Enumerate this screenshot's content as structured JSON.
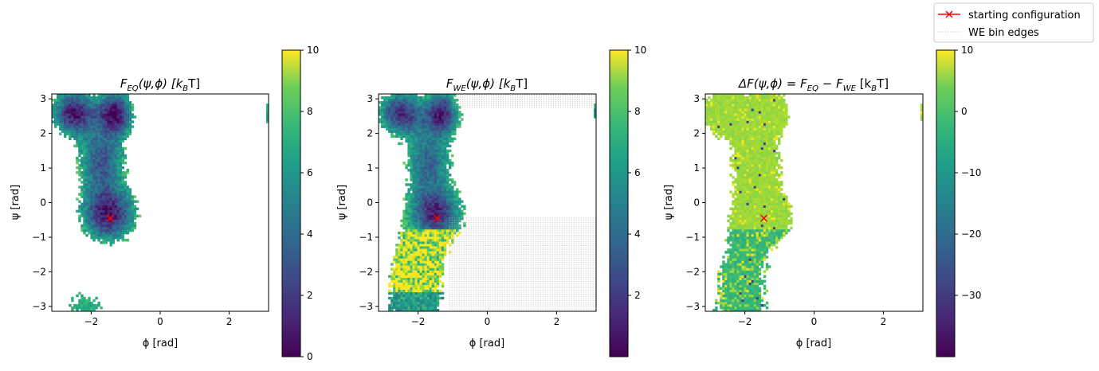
{
  "figure": {
    "legend": {
      "placement": "upper-right",
      "entries": [
        {
          "label": "starting configuration",
          "color": "#ff0000",
          "style": "line-x-marker"
        },
        {
          "label": "WE bin edges",
          "color": "#b0b0b0",
          "style": "dotted"
        }
      ]
    }
  },
  "chart_data": [
    {
      "type": "heatmap",
      "panel": "FEQ",
      "title_main": "F",
      "title_sub": "EQ",
      "title_tail": "(ψ,ϕ) [k",
      "title_sub2": "B",
      "title_end": "T]",
      "xlabel": "ϕ [rad]",
      "ylabel": "ψ [rad]",
      "xlim": [
        -3.14159,
        3.14159
      ],
      "ylim": [
        -3.14159,
        3.14159
      ],
      "xticks": [
        -2,
        0,
        2
      ],
      "yticks": [
        -3,
        -2,
        -1,
        0,
        1,
        2,
        3
      ],
      "colorbar": {
        "ticks": [
          0,
          2,
          4,
          6,
          8,
          10
        ],
        "range": [
          0,
          10
        ],
        "colormap": "viridis"
      },
      "starting_configuration": {
        "phi": -1.45,
        "psi": -0.45
      },
      "show_bin_edges": false,
      "populated_regions": [
        {
          "phi": -2.5,
          "psi": 2.6,
          "level": "low"
        },
        {
          "phi": -1.3,
          "psi": 2.6,
          "level": "low"
        },
        {
          "phi": -1.4,
          "psi": -0.4,
          "level": "low"
        },
        {
          "phi": -2.2,
          "psi": -3.0,
          "level": "high"
        }
      ]
    },
    {
      "type": "heatmap",
      "panel": "FWE",
      "title_main": "F",
      "title_sub": "WE",
      "title_tail": "(ψ,ϕ) [k",
      "title_sub2": "B",
      "title_end": "T]",
      "xlabel": "ϕ [rad]",
      "ylabel": "ψ [rad]",
      "xlim": [
        -3.14159,
        3.14159
      ],
      "ylim": [
        -3.14159,
        3.14159
      ],
      "xticks": [
        -2,
        0,
        2
      ],
      "yticks": [
        -3,
        -2,
        -1,
        0,
        1,
        2,
        3
      ],
      "colorbar": {
        "ticks": [
          2,
          4,
          6,
          8,
          10
        ],
        "range": [
          0,
          10
        ],
        "colormap": "viridis"
      },
      "starting_configuration": {
        "phi": -1.45,
        "psi": -0.45
      },
      "show_bin_edges": true,
      "populated_regions": [
        {
          "phi": -2.5,
          "psi": 2.6,
          "level": "low"
        },
        {
          "phi": -1.4,
          "psi": -0.4,
          "level": "low"
        },
        {
          "phi": -2.0,
          "psi": -2.0,
          "level": "high"
        }
      ]
    },
    {
      "type": "heatmap",
      "panel": "dF",
      "title_main": "ΔF(ψ,ϕ) = F",
      "title_sub": "EQ",
      "title_tail": " − F",
      "title_sub2": "WE",
      "title_end": " [k",
      "title_sub3": "B",
      "title_end2": "T]",
      "xlabel": "ϕ [rad]",
      "ylabel": "ψ [rad]",
      "xlim": [
        -3.14159,
        3.14159
      ],
      "ylim": [
        -3.14159,
        3.14159
      ],
      "xticks": [
        -2,
        0,
        2
      ],
      "yticks": [
        -3,
        -2,
        -1,
        0,
        1,
        2,
        3
      ],
      "colorbar": {
        "ticks": [
          10,
          0,
          -10,
          -20,
          -30
        ],
        "range": [
          -40,
          10
        ],
        "colormap": "viridis"
      },
      "starting_configuration": {
        "phi": -1.45,
        "psi": -0.45
      },
      "show_bin_edges": false,
      "populated_regions": [
        {
          "phi": -1.8,
          "psi": 2.2,
          "level": "near-zero"
        },
        {
          "phi": -1.6,
          "psi": -0.4,
          "level": "near-zero"
        },
        {
          "phi": -2.0,
          "psi": -2.5,
          "level": "negative"
        }
      ]
    }
  ]
}
